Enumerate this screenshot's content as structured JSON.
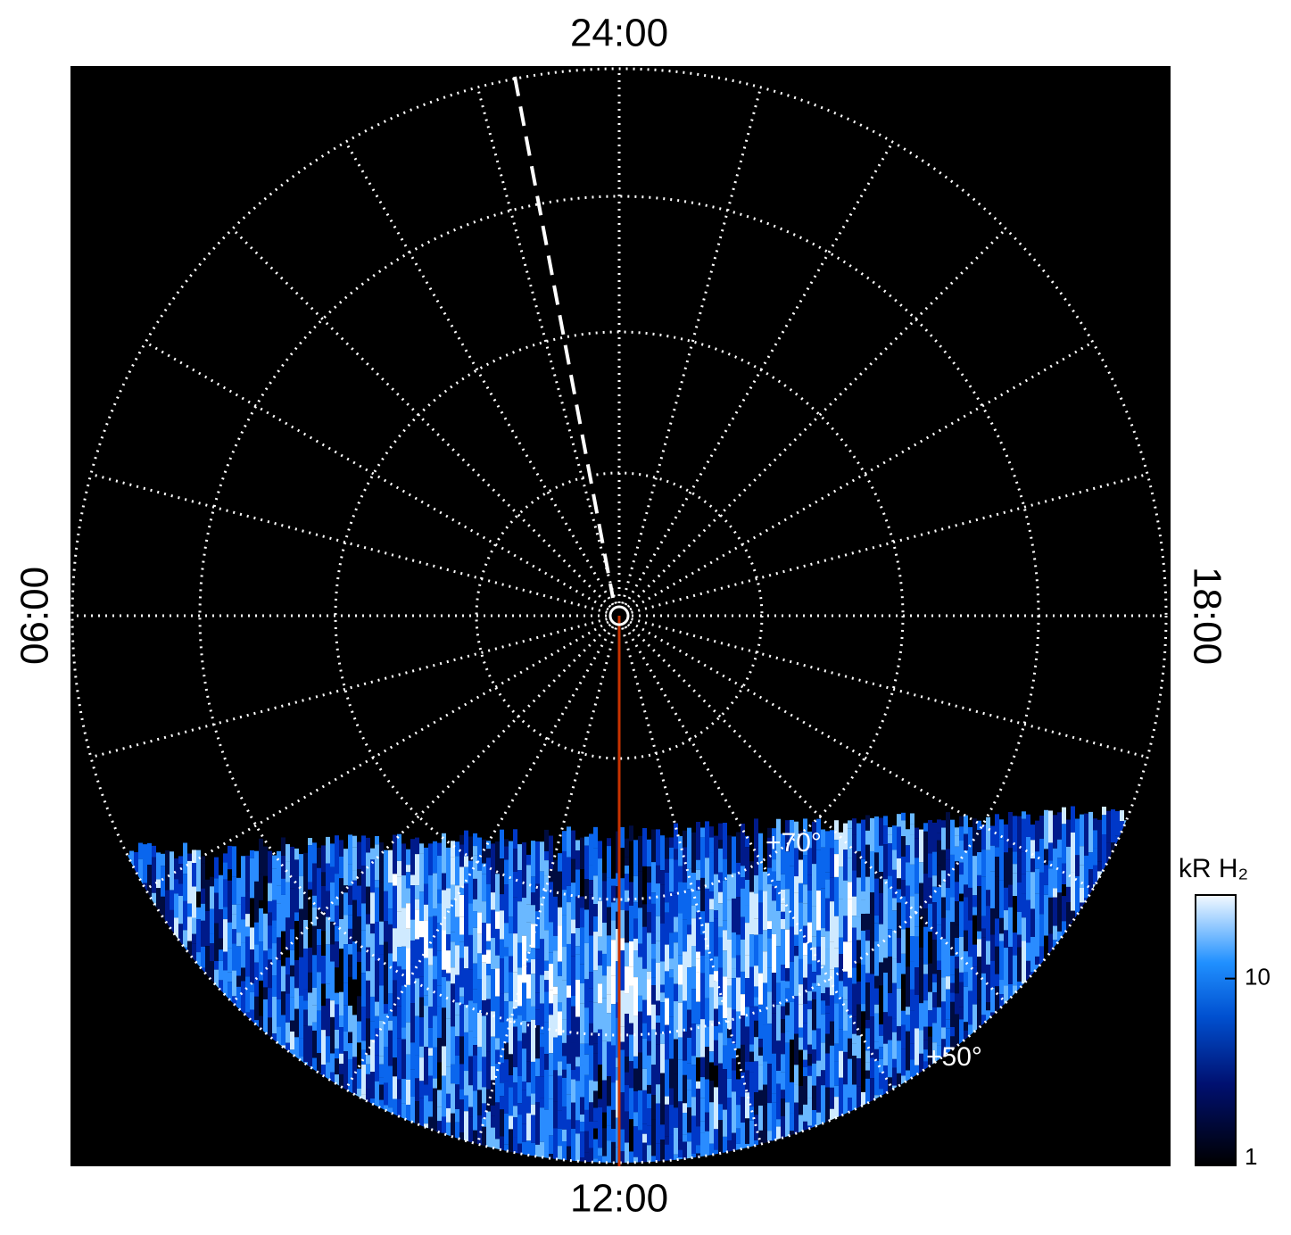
{
  "chart_data": {
    "type": "polar-image",
    "labels": {
      "top": "24:00",
      "bottom": "12:00",
      "left": "06:00",
      "right": "18:00"
    },
    "latitude_labels": [
      "+70°",
      "+50°"
    ],
    "colorbar": {
      "title": "kR H₂",
      "scale": "log",
      "clim": [
        1,
        28
      ],
      "ticks": [
        1,
        10
      ]
    }
  }
}
